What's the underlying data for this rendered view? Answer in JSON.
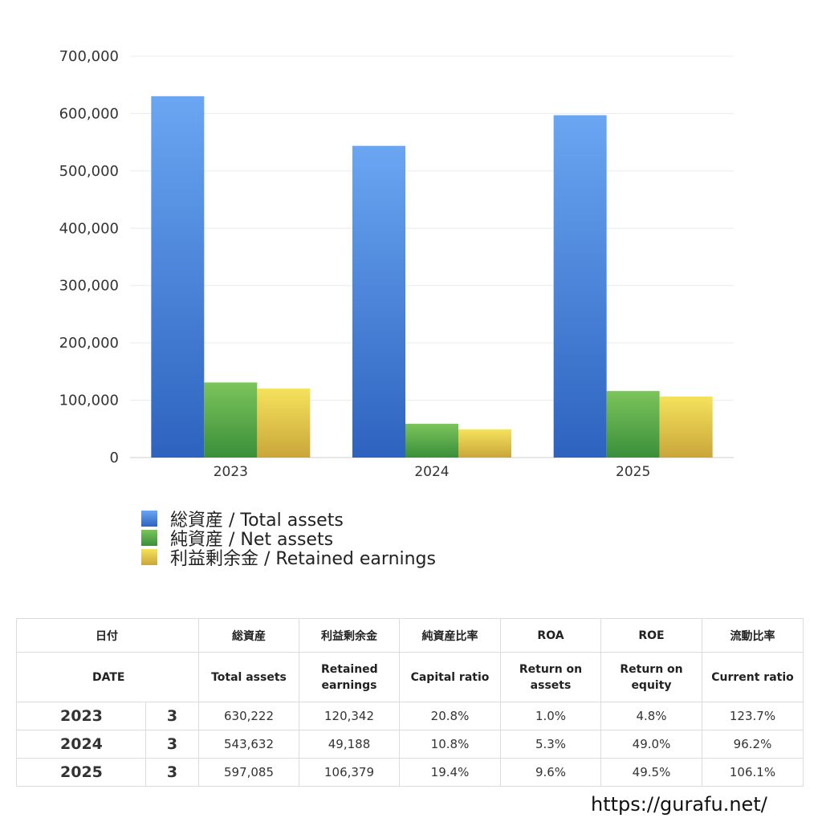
{
  "chart_data": {
    "type": "bar",
    "categories": [
      "2023",
      "2024",
      "2025"
    ],
    "series": [
      {
        "name": "総資産 / Total assets",
        "values": [
          630222,
          543632,
          597085
        ],
        "color_top": "#6aa6f2",
        "color_bottom": "#2d63bf"
      },
      {
        "name": "純資産 / Net assets",
        "values": [
          131000,
          59000,
          116000
        ],
        "color_top": "#7cc45b",
        "color_bottom": "#3a8f3a"
      },
      {
        "name": "利益剰余金 / Retained earnings",
        "values": [
          120342,
          49188,
          106379
        ],
        "color_top": "#f5e25c",
        "color_bottom": "#c9a63a"
      }
    ],
    "yticks": [
      "0",
      "100,000",
      "200,000",
      "300,000",
      "400,000",
      "500,000",
      "600,000",
      "700,000"
    ],
    "ylim": [
      0,
      700000
    ],
    "grid": true,
    "legend_position": "bottom-left"
  },
  "table": {
    "headers_ja": [
      "日付",
      "総資産",
      "利益剰余金",
      "純資産比率",
      "ROA",
      "ROE",
      "流動比率"
    ],
    "headers_en": [
      "DATE",
      "Total assets",
      "Retained earnings",
      "Capital ratio",
      "Return on assets",
      "Return on equity",
      "Current ratio"
    ],
    "rows": [
      {
        "year": "2023",
        "month": "3",
        "total_assets": "630,222",
        "retained": "120,342",
        "capital_ratio": "20.8%",
        "roa": "1.0%",
        "roe": "4.8%",
        "current": "123.7%"
      },
      {
        "year": "2024",
        "month": "3",
        "total_assets": "543,632",
        "retained": "49,188",
        "capital_ratio": "10.8%",
        "roa": "5.3%",
        "roe": "49.0%",
        "current": "96.2%"
      },
      {
        "year": "2025",
        "month": "3",
        "total_assets": "597,085",
        "retained": "106,379",
        "capital_ratio": "19.4%",
        "roa": "9.6%",
        "roe": "49.5%",
        "current": "106.1%"
      }
    ]
  },
  "watermark": "https://gurafu.net/"
}
